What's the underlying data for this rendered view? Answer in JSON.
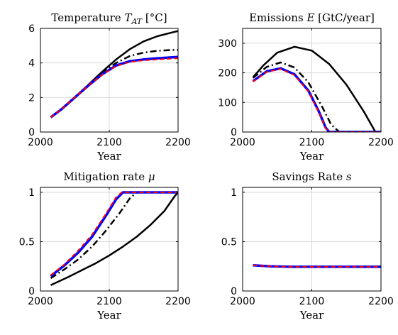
{
  "chart_data": [
    {
      "type": "line",
      "title": "Temperature T_AT [°C]",
      "title_parts": {
        "prefix": "Temperature ",
        "symbol": "T",
        "subscript": "AT",
        "suffix": " [°C]"
      },
      "xlabel": "Year",
      "ylabel": "",
      "xlim": [
        2000,
        2200
      ],
      "ylim": [
        0,
        6
      ],
      "xticks": [
        "2000",
        "2100",
        "2200"
      ],
      "yticks": [
        "0",
        "2",
        "4",
        "6"
      ],
      "grid": true,
      "series": [
        {
          "color": "#000000",
          "dash": "solid",
          "width": 2.5,
          "x": [
            2015,
            2030,
            2050,
            2070,
            2090,
            2110,
            2130,
            2150,
            2170,
            2190,
            2200
          ],
          "y": [
            0.85,
            1.3,
            2.0,
            2.75,
            3.5,
            4.2,
            4.8,
            5.25,
            5.55,
            5.75,
            5.85
          ]
        },
        {
          "color": "#000000",
          "dash": "dashdot",
          "width": 2.5,
          "x": [
            2015,
            2030,
            2050,
            2070,
            2090,
            2110,
            2130,
            2150,
            2170,
            2190,
            2200
          ],
          "y": [
            0.85,
            1.3,
            2.0,
            2.75,
            3.45,
            4.0,
            4.4,
            4.6,
            4.7,
            4.75,
            4.75
          ]
        },
        {
          "color": "#0000ff",
          "dash": "solid",
          "width": 3.5,
          "x": [
            2015,
            2030,
            2050,
            2070,
            2090,
            2110,
            2130,
            2150,
            2170,
            2190,
            2200
          ],
          "y": [
            0.85,
            1.3,
            2.0,
            2.7,
            3.35,
            3.85,
            4.1,
            4.2,
            4.27,
            4.32,
            4.35
          ]
        },
        {
          "color": "#ff0000",
          "dash": "dashed",
          "width": 2,
          "x": [
            2015,
            2030,
            2050,
            2070,
            2090,
            2110,
            2130,
            2150,
            2170,
            2190,
            2200
          ],
          "y": [
            0.85,
            1.3,
            2.0,
            2.7,
            3.33,
            3.82,
            4.06,
            4.15,
            4.2,
            4.25,
            4.27
          ]
        }
      ]
    },
    {
      "type": "line",
      "title": "Emissions E [GtC/year]",
      "title_parts": {
        "prefix": "Emissions ",
        "symbol": "E",
        "subscript": "",
        "suffix": " [GtC/year]"
      },
      "xlabel": "Year",
      "ylabel": "",
      "xlim": [
        2000,
        2200
      ],
      "ylim": [
        0,
        350
      ],
      "xticks": [
        "2000",
        "2100",
        "2200"
      ],
      "yticks": [
        "0",
        "100",
        "200",
        "300"
      ],
      "grid": true,
      "series": [
        {
          "color": "#000000",
          "dash": "solid",
          "width": 2.5,
          "x": [
            2015,
            2030,
            2050,
            2075,
            2100,
            2125,
            2150,
            2175,
            2192,
            2200
          ],
          "y": [
            185,
            225,
            268,
            288,
            275,
            230,
            160,
            70,
            0,
            0
          ]
        },
        {
          "color": "#000000",
          "dash": "dashdot",
          "width": 2.5,
          "x": [
            2015,
            2035,
            2055,
            2075,
            2095,
            2115,
            2128,
            2140,
            2200
          ],
          "y": [
            183,
            220,
            235,
            218,
            168,
            85,
            25,
            0,
            0
          ]
        },
        {
          "color": "#0000ff",
          "dash": "solid",
          "width": 3.5,
          "x": [
            2015,
            2035,
            2055,
            2075,
            2095,
            2110,
            2120,
            2125,
            2200
          ],
          "y": [
            172,
            205,
            215,
            195,
            140,
            70,
            15,
            0,
            0
          ]
        },
        {
          "color": "#ff0000",
          "dash": "dashed",
          "width": 2,
          "x": [
            2015,
            2035,
            2055,
            2075,
            2095,
            2110,
            2120,
            2125,
            2200
          ],
          "y": [
            170,
            203,
            213,
            192,
            137,
            67,
            12,
            0,
            0
          ]
        }
      ]
    },
    {
      "type": "line",
      "title": "Mitigation rate μ",
      "title_parts": {
        "prefix": "Mitigation rate ",
        "symbol": "μ",
        "subscript": "",
        "suffix": ""
      },
      "xlabel": "Year",
      "ylabel": "",
      "xlim": [
        2000,
        2200
      ],
      "ylim": [
        0,
        1.05
      ],
      "xticks": [
        "2000",
        "2100",
        "2200"
      ],
      "yticks": [
        "0",
        "0.5",
        "1"
      ],
      "grid": true,
      "series": [
        {
          "color": "#000000",
          "dash": "solid",
          "width": 2.5,
          "x": [
            2015,
            2040,
            2060,
            2080,
            2100,
            2120,
            2140,
            2160,
            2180,
            2195,
            2200
          ],
          "y": [
            0.06,
            0.14,
            0.21,
            0.28,
            0.36,
            0.45,
            0.55,
            0.67,
            0.81,
            0.96,
            1.0
          ]
        },
        {
          "color": "#000000",
          "dash": "dashdot",
          "width": 2.5,
          "x": [
            2015,
            2035,
            2055,
            2075,
            2095,
            2115,
            2130,
            2140,
            2200
          ],
          "y": [
            0.13,
            0.22,
            0.32,
            0.45,
            0.61,
            0.79,
            0.94,
            1.0,
            1.0
          ]
        },
        {
          "color": "#0000ff",
          "dash": "solid",
          "width": 3.5,
          "x": [
            2015,
            2035,
            2055,
            2075,
            2095,
            2110,
            2120,
            2200
          ],
          "y": [
            0.15,
            0.26,
            0.39,
            0.55,
            0.76,
            0.93,
            1.0,
            1.0
          ]
        },
        {
          "color": "#ff0000",
          "dash": "dashed",
          "width": 2,
          "x": [
            2015,
            2035,
            2055,
            2075,
            2095,
            2110,
            2118,
            2200
          ],
          "y": [
            0.16,
            0.27,
            0.41,
            0.57,
            0.78,
            0.95,
            1.0,
            1.0
          ]
        }
      ]
    },
    {
      "type": "line",
      "title": "Savings Rate s",
      "title_parts": {
        "prefix": "Savings Rate ",
        "symbol": "s",
        "subscript": "",
        "suffix": ""
      },
      "xlabel": "Year",
      "ylabel": "",
      "xlim": [
        2000,
        2200
      ],
      "ylim": [
        0,
        1.05
      ],
      "xticks": [
        "2000",
        "2100",
        "2200"
      ],
      "yticks": [
        "0",
        "0.5",
        "1"
      ],
      "grid": true,
      "series": [
        {
          "color": "#000000",
          "dash": "solid",
          "width": 2.5,
          "x": [
            2015,
            2040,
            2070,
            2100,
            2150,
            2200
          ],
          "y": [
            0.26,
            0.25,
            0.245,
            0.245,
            0.245,
            0.245
          ]
        },
        {
          "color": "#000000",
          "dash": "dashdot",
          "width": 2.5,
          "x": [
            2015,
            2040,
            2070,
            2100,
            2150,
            2200
          ],
          "y": [
            0.26,
            0.25,
            0.245,
            0.245,
            0.245,
            0.245
          ]
        },
        {
          "color": "#0000ff",
          "dash": "solid",
          "width": 3.5,
          "x": [
            2015,
            2040,
            2070,
            2100,
            2150,
            2200
          ],
          "y": [
            0.26,
            0.25,
            0.245,
            0.245,
            0.245,
            0.245
          ]
        },
        {
          "color": "#ff0000",
          "dash": "dashed",
          "width": 2,
          "x": [
            2015,
            2040,
            2070,
            2100,
            2150,
            2200
          ],
          "y": [
            0.26,
            0.25,
            0.245,
            0.245,
            0.245,
            0.245
          ]
        }
      ]
    }
  ]
}
